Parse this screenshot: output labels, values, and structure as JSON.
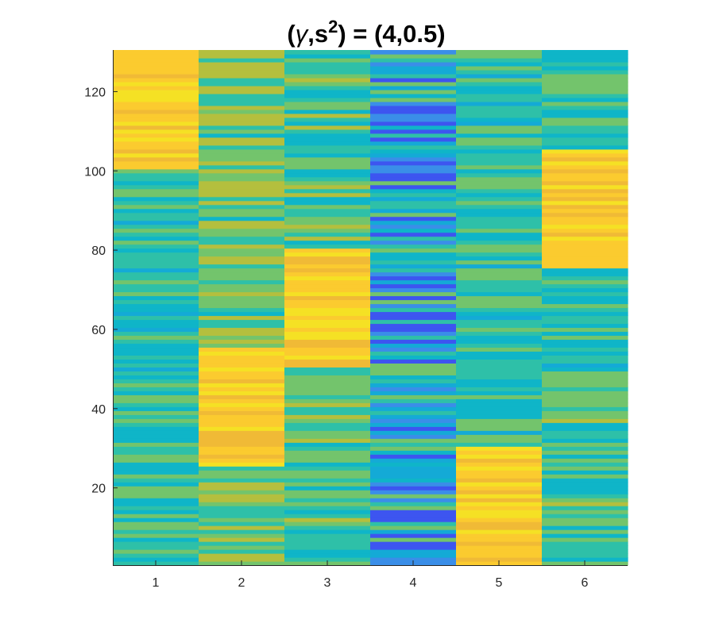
{
  "chart_data": {
    "type": "heatmap",
    "title": {
      "open": "(",
      "gamma": "γ",
      "sep": ",s",
      "sup": "2",
      "rest": ") = (4,0.5)"
    },
    "xlabel": "",
    "ylabel": "",
    "x_ticks": [
      "1",
      "2",
      "3",
      "4",
      "5",
      "6"
    ],
    "y_ticks": [
      {
        "value": 20,
        "label": "20"
      },
      {
        "value": 40,
        "label": "40"
      },
      {
        "value": 60,
        "label": "60"
      },
      {
        "value": 80,
        "label": "80"
      },
      {
        "value": 100,
        "label": "100"
      },
      {
        "value": 120,
        "label": "120"
      }
    ],
    "xlim": [
      0.5,
      6.5
    ],
    "ylim": [
      0.5,
      130.5
    ],
    "n_rows": 130,
    "colormap": "parula",
    "color_range": [
      0,
      1
    ],
    "palette": [
      "#3d55f0",
      "#3a8ee8",
      "#14aad6",
      "#0fb5c8",
      "#2ec0a8",
      "#73c46c",
      "#b4bf3e",
      "#f0ba36",
      "#fbcb2f",
      "#f5e124"
    ],
    "base_levels": [
      0.42,
      0.55,
      0.5,
      0.2,
      0.42,
      0.45
    ],
    "high_blocks": [
      {
        "column": 1,
        "rows": [
          101,
          130
        ]
      },
      {
        "column": 2,
        "rows": [
          26,
          55
        ]
      },
      {
        "column": 3,
        "rows": [
          51,
          80
        ]
      },
      {
        "column": 5,
        "rows": [
          1,
          30
        ]
      },
      {
        "column": 6,
        "rows": [
          76,
          105
        ]
      }
    ]
  }
}
